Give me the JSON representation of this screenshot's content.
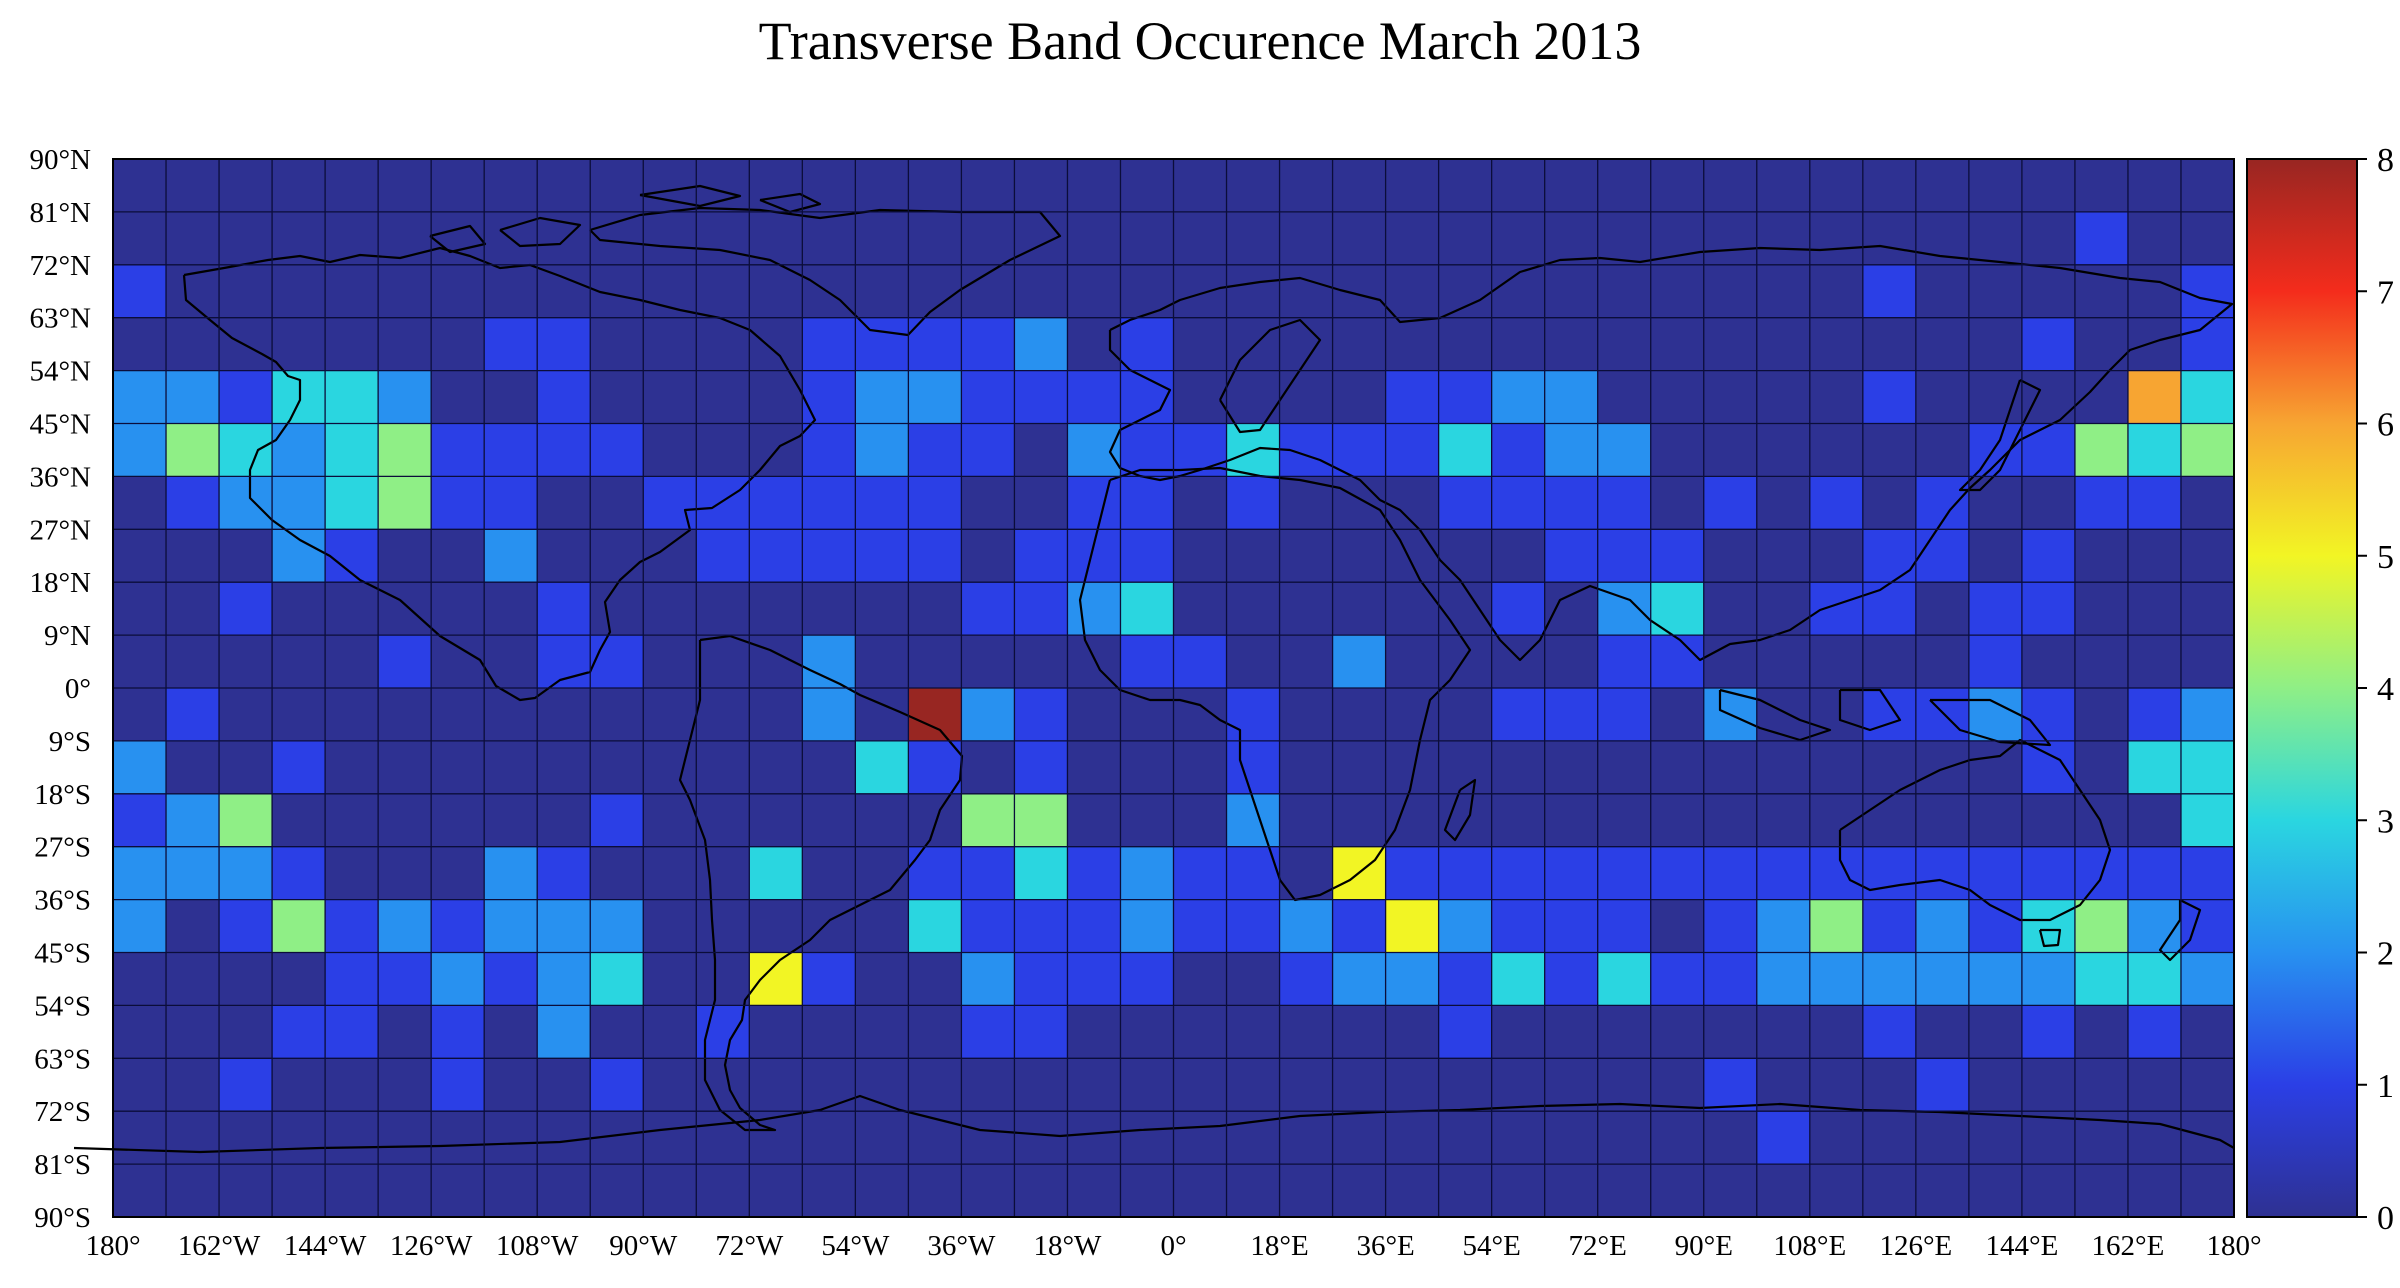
{
  "chart_data": {
    "type": "heatmap",
    "title": "Transverse Band Occurence March 2013",
    "x_tick_labels": [
      "180°",
      "162°W",
      "144°W",
      "126°W",
      "108°W",
      "90°W",
      "72°W",
      "54°W",
      "36°W",
      "18°W",
      "0°",
      "18°E",
      "36°E",
      "54°E",
      "72°E",
      "90°E",
      "108°E",
      "126°E",
      "144°E",
      "162°E",
      "180°"
    ],
    "y_tick_labels": [
      "90°N",
      "81°N",
      "72°N",
      "63°N",
      "54°N",
      "45°N",
      "36°N",
      "27°N",
      "18°N",
      "9°N",
      "0°",
      "9°S",
      "18°S",
      "27°S",
      "36°S",
      "45°S",
      "54°S",
      "63°S",
      "72°S",
      "81°S",
      "90°S"
    ],
    "x_range_deg": [
      -180,
      180
    ],
    "y_range_deg": [
      -90,
      90
    ],
    "cell_size_deg": 9,
    "colorbar": {
      "min": 0,
      "max": 8,
      "tick_labels": [
        "0",
        "1",
        "2",
        "3",
        "4",
        "5",
        "6",
        "7",
        "8"
      ],
      "colormap": "jet"
    },
    "coastlines": true,
    "grid": true,
    "values": [
      [
        0,
        0,
        0,
        0,
        0,
        0,
        0,
        0,
        0,
        0,
        0,
        0,
        0,
        0,
        0,
        0,
        0,
        0,
        0,
        0,
        0,
        0,
        0,
        0,
        0,
        0,
        0,
        0,
        0,
        0,
        0,
        0,
        0,
        0,
        0,
        0,
        0,
        0,
        0,
        0
      ],
      [
        0,
        0,
        0,
        0,
        0,
        0,
        0,
        0,
        0,
        0,
        0,
        0,
        0,
        0,
        0,
        0,
        0,
        0,
        0,
        0,
        0,
        0,
        0,
        0,
        0,
        0,
        0,
        0,
        0,
        0,
        0,
        0,
        0,
        0,
        0,
        0,
        0,
        1,
        0,
        0
      ],
      [
        1,
        0,
        0,
        0,
        0,
        0,
        0,
        0,
        0,
        0,
        0,
        0,
        0,
        0,
        0,
        0,
        0,
        0,
        0,
        0,
        0,
        0,
        0,
        0,
        0,
        0,
        0,
        0,
        0,
        0,
        0,
        0,
        0,
        1,
        0,
        0,
        0,
        0,
        0,
        1
      ],
      [
        0,
        0,
        0,
        0,
        0,
        0,
        0,
        1,
        1,
        0,
        0,
        0,
        0,
        1,
        1,
        1,
        1,
        2,
        0,
        1,
        0,
        0,
        0,
        0,
        0,
        0,
        0,
        0,
        0,
        0,
        0,
        0,
        0,
        0,
        0,
        0,
        1,
        0,
        0,
        1
      ],
      [
        2,
        2,
        1,
        3,
        3,
        2,
        0,
        0,
        1,
        0,
        0,
        0,
        0,
        1,
        2,
        2,
        1,
        1,
        1,
        1,
        0,
        0,
        0,
        0,
        1,
        1,
        2,
        2,
        0,
        0,
        0,
        0,
        0,
        1,
        0,
        0,
        0,
        0,
        6,
        3
      ],
      [
        2,
        4,
        3,
        2,
        3,
        4,
        1,
        1,
        1,
        1,
        0,
        0,
        0,
        1,
        2,
        1,
        1,
        0,
        2,
        1,
        1,
        3,
        1,
        1,
        1,
        3,
        1,
        2,
        2,
        0,
        0,
        0,
        0,
        0,
        0,
        1,
        1,
        4,
        3,
        4
      ],
      [
        0,
        1,
        2,
        2,
        3,
        4,
        1,
        1,
        0,
        0,
        1,
        1,
        1,
        1,
        1,
        1,
        0,
        0,
        1,
        1,
        0,
        1,
        0,
        0,
        0,
        1,
        1,
        1,
        1,
        0,
        1,
        0,
        1,
        0,
        1,
        0,
        0,
        1,
        1,
        0
      ],
      [
        0,
        0,
        0,
        2,
        1,
        0,
        0,
        2,
        0,
        0,
        0,
        1,
        1,
        1,
        1,
        1,
        0,
        1,
        1,
        1,
        0,
        0,
        0,
        0,
        0,
        0,
        0,
        1,
        1,
        1,
        0,
        0,
        0,
        1,
        1,
        0,
        1,
        0,
        0,
        0
      ],
      [
        0,
        0,
        1,
        0,
        0,
        0,
        0,
        0,
        1,
        0,
        0,
        0,
        0,
        0,
        0,
        0,
        1,
        1,
        2,
        3,
        0,
        0,
        0,
        0,
        0,
        0,
        1,
        0,
        2,
        3,
        0,
        0,
        1,
        1,
        0,
        1,
        1,
        0,
        0,
        0
      ],
      [
        0,
        0,
        0,
        0,
        0,
        1,
        0,
        0,
        1,
        1,
        0,
        0,
        0,
        2,
        0,
        0,
        0,
        0,
        0,
        1,
        1,
        0,
        0,
        2,
        0,
        0,
        0,
        0,
        1,
        1,
        0,
        0,
        0,
        0,
        0,
        1,
        0,
        0,
        0,
        0
      ],
      [
        0,
        1,
        0,
        0,
        0,
        0,
        0,
        0,
        0,
        0,
        0,
        0,
        0,
        2,
        0,
        8,
        2,
        1,
        0,
        0,
        0,
        1,
        0,
        0,
        0,
        0,
        1,
        1,
        1,
        0,
        2,
        0,
        0,
        1,
        1,
        2,
        1,
        0,
        1,
        2
      ],
      [
        2,
        0,
        0,
        1,
        0,
        0,
        0,
        0,
        0,
        0,
        0,
        0,
        0,
        0,
        3,
        1,
        0,
        1,
        0,
        0,
        0,
        1,
        0,
        0,
        0,
        0,
        0,
        0,
        0,
        0,
        0,
        0,
        0,
        0,
        0,
        0,
        1,
        0,
        3,
        3
      ],
      [
        1,
        2,
        4,
        0,
        0,
        0,
        0,
        0,
        0,
        1,
        0,
        0,
        0,
        0,
        0,
        0,
        4,
        4,
        0,
        0,
        0,
        2,
        0,
        0,
        0,
        0,
        0,
        0,
        0,
        0,
        0,
        0,
        0,
        0,
        0,
        0,
        0,
        0,
        0,
        3
      ],
      [
        2,
        2,
        2,
        1,
        0,
        0,
        0,
        2,
        1,
        0,
        0,
        0,
        3,
        0,
        0,
        1,
        1,
        3,
        1,
        2,
        1,
        1,
        0,
        5,
        1,
        1,
        1,
        1,
        1,
        1,
        1,
        1,
        1,
        1,
        1,
        1,
        1,
        1,
        1,
        1
      ],
      [
        2,
        0,
        1,
        4,
        1,
        2,
        1,
        2,
        2,
        2,
        0,
        0,
        0,
        0,
        0,
        3,
        1,
        1,
        1,
        2,
        1,
        1,
        2,
        1,
        5,
        2,
        1,
        1,
        1,
        0,
        1,
        2,
        4,
        1,
        2,
        1,
        3,
        4,
        2,
        1
      ],
      [
        0,
        0,
        0,
        0,
        1,
        1,
        2,
        1,
        2,
        3,
        0,
        0,
        5,
        1,
        0,
        0,
        2,
        1,
        1,
        1,
        0,
        0,
        1,
        2,
        2,
        1,
        3,
        1,
        3,
        1,
        1,
        2,
        2,
        2,
        2,
        2,
        2,
        3,
        3,
        2
      ],
      [
        0,
        0,
        0,
        1,
        1,
        0,
        1,
        0,
        2,
        0,
        0,
        1,
        0,
        0,
        0,
        0,
        1,
        1,
        0,
        0,
        0,
        0,
        0,
        0,
        0,
        1,
        0,
        0,
        0,
        0,
        0,
        0,
        0,
        1,
        0,
        0,
        1,
        0,
        1,
        0
      ],
      [
        0,
        0,
        1,
        0,
        0,
        0,
        1,
        0,
        0,
        1,
        0,
        0,
        0,
        0,
        0,
        0,
        0,
        0,
        0,
        0,
        0,
        0,
        0,
        0,
        0,
        0,
        0,
        0,
        0,
        0,
        1,
        0,
        0,
        0,
        1,
        0,
        0,
        0,
        0,
        0
      ],
      [
        0,
        0,
        0,
        0,
        0,
        0,
        0,
        0,
        0,
        0,
        0,
        0,
        0,
        0,
        0,
        0,
        0,
        0,
        0,
        0,
        0,
        0,
        0,
        0,
        0,
        0,
        0,
        0,
        0,
        0,
        0,
        1,
        0,
        0,
        0,
        0,
        0,
        0,
        0,
        0
      ],
      [
        0,
        0,
        0,
        0,
        0,
        0,
        0,
        0,
        0,
        0,
        0,
        0,
        0,
        0,
        0,
        0,
        0,
        0,
        0,
        0,
        0,
        0,
        0,
        0,
        0,
        0,
        0,
        0,
        0,
        0,
        0,
        0,
        0,
        0,
        0,
        0,
        0,
        0,
        0,
        0
      ]
    ]
  }
}
